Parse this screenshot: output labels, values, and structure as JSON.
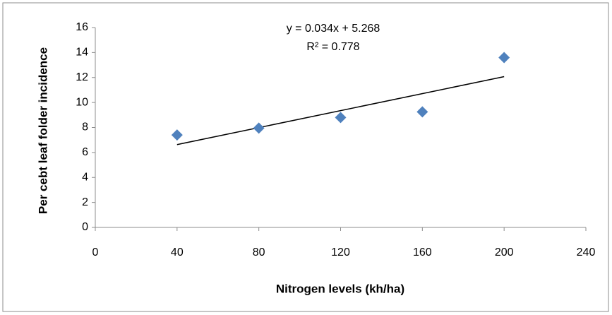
{
  "chart_data": {
    "type": "scatter",
    "x_label": "Nitrogen levels (kh/ha)",
    "y_label": "Per cebt leaf folder incidence",
    "annotations": [
      "y = 0.034x + 5.268",
      "R² = 0.778"
    ],
    "x": [
      40,
      80,
      120,
      160,
      200
    ],
    "values": [
      7.4,
      7.95,
      8.8,
      9.25,
      13.6
    ],
    "color": "#4f81bd",
    "trendline": {
      "x": [
        40,
        200
      ],
      "values": [
        6.63,
        12.07
      ],
      "color": "#000000"
    },
    "xlim": [
      0,
      240
    ],
    "xticks": [
      0,
      40,
      80,
      120,
      160,
      200,
      240
    ],
    "ylim": [
      0,
      16
    ],
    "yticks": [
      0,
      2,
      4,
      6,
      8,
      10,
      12,
      14,
      16
    ],
    "grid": false
  }
}
